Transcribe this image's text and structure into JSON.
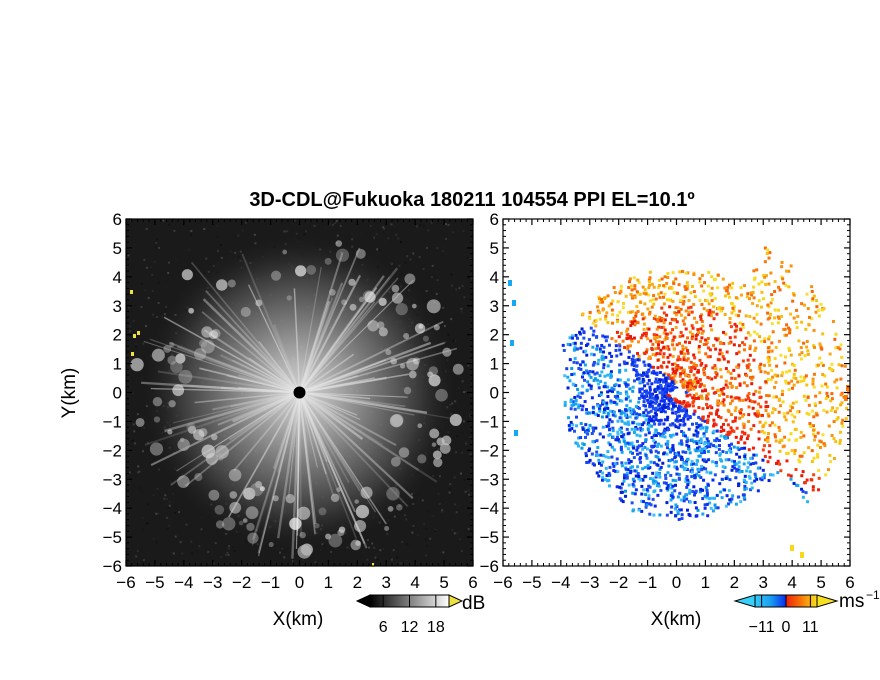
{
  "chart_data": [
    {
      "type": "heatmap",
      "title": "3D-CDL@Fukuoka 180211 104554 PPI EL=10.1º",
      "xlabel": "X(km)",
      "ylabel": "Y(km)",
      "xlim": [
        -6,
        6
      ],
      "ylim": [
        -6,
        6
      ],
      "xticks": [
        "−6",
        "−5",
        "−4",
        "−3",
        "−2",
        "−1",
        "0",
        "1",
        "2",
        "3",
        "4",
        "5",
        "6"
      ],
      "yticks": [
        "6",
        "5",
        "4",
        "3",
        "2",
        "1",
        "0",
        "−1",
        "−2",
        "−3",
        "−4",
        "−5",
        "−6"
      ],
      "colormap": "grayscale",
      "colorbar": {
        "unit": "dB",
        "ticks": [
          "6",
          "12",
          "18"
        ],
        "range": [
          3,
          21
        ]
      }
    },
    {
      "type": "heatmap",
      "xlabel": "X(km)",
      "xlim": [
        -6,
        6
      ],
      "ylim": [
        -6,
        6
      ],
      "xticks": [
        "−6",
        "−5",
        "−4",
        "−3",
        "−2",
        "−1",
        "0",
        "1",
        "2",
        "3",
        "4",
        "5",
        "6"
      ],
      "yticks": [
        "6",
        "5",
        "4",
        "3",
        "2",
        "1",
        "0",
        "−1",
        "−2",
        "−3",
        "−4",
        "−5",
        "−6"
      ],
      "colormap": "light-blue to blue to red to yellow",
      "colorbar": {
        "unit": "ms",
        "unit_exponent": "−1",
        "ticks": [
          "−11",
          "0",
          "11"
        ],
        "range": [
          -14,
          14
        ]
      }
    }
  ],
  "colors": {
    "background": "#ffffff",
    "panel_left_bg": "#1a1a1a",
    "speckle_yellow": "#f0e040",
    "approaching_light": "#18a8f0",
    "approaching_dark": "#0a2cf0",
    "receding_red": "#f02008",
    "receding_orange": "#f87808",
    "receding_yellow": "#f8d818",
    "radar_center": "#000000"
  }
}
